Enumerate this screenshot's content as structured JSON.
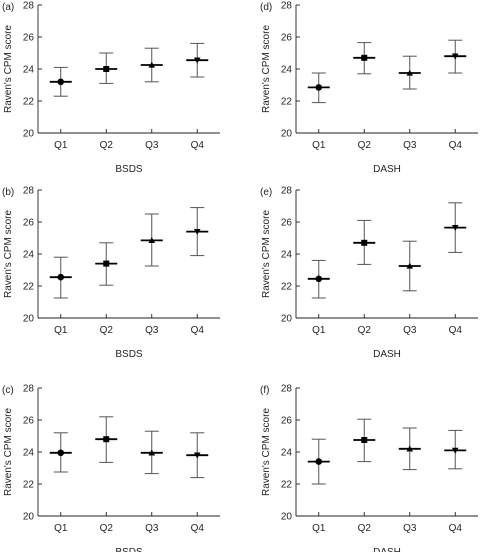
{
  "chart_data": [
    {
      "type": "errorbar",
      "panel_label": "(a)",
      "xlabel": "BSDS",
      "ylabel": "Raven's CPM score",
      "ylim": [
        20,
        28
      ],
      "yticks": [
        "20",
        "22",
        "24",
        "26",
        "28"
      ],
      "categories": [
        "Q1",
        "Q2",
        "Q3",
        "Q4"
      ],
      "values": [
        23.2,
        24.0,
        24.25,
        24.55
      ],
      "lower": [
        22.3,
        23.1,
        23.2,
        23.5
      ],
      "upper": [
        24.1,
        25.0,
        25.3,
        25.6
      ],
      "markers": [
        "circle",
        "square",
        "triangle-up",
        "triangle-down"
      ]
    },
    {
      "type": "errorbar",
      "panel_label": "(d)",
      "xlabel": "DASH",
      "ylabel": "Raven's CPM score",
      "ylim": [
        20,
        28
      ],
      "yticks": [
        "20",
        "22",
        "24",
        "26",
        "28"
      ],
      "categories": [
        "Q1",
        "Q2",
        "Q3",
        "Q4"
      ],
      "values": [
        22.85,
        24.7,
        23.75,
        24.8
      ],
      "lower": [
        21.9,
        23.7,
        22.75,
        23.75
      ],
      "upper": [
        23.75,
        25.65,
        24.8,
        25.8
      ],
      "markers": [
        "circle",
        "square",
        "triangle-up",
        "triangle-down"
      ]
    },
    {
      "type": "errorbar",
      "panel_label": "(b)",
      "xlabel": "BSDS",
      "ylabel": "Raven's CPM score",
      "ylim": [
        20,
        28
      ],
      "yticks": [
        "20",
        "22",
        "24",
        "26",
        "28"
      ],
      "categories": [
        "Q1",
        "Q2",
        "Q3",
        "Q4"
      ],
      "values": [
        22.55,
        23.4,
        24.85,
        25.4
      ],
      "lower": [
        21.25,
        22.05,
        23.25,
        23.9
      ],
      "upper": [
        23.8,
        24.7,
        26.5,
        26.9
      ],
      "markers": [
        "circle",
        "square",
        "triangle-up",
        "triangle-down"
      ]
    },
    {
      "type": "errorbar",
      "panel_label": "(e)",
      "xlabel": "DASH",
      "ylabel": "Raven's CPM score",
      "ylim": [
        20,
        28
      ],
      "yticks": [
        "20",
        "22",
        "24",
        "26",
        "28"
      ],
      "categories": [
        "Q1",
        "Q2",
        "Q3",
        "Q4"
      ],
      "values": [
        22.45,
        24.7,
        23.25,
        25.65
      ],
      "lower": [
        21.25,
        23.35,
        21.7,
        24.1
      ],
      "upper": [
        23.6,
        26.1,
        24.8,
        27.2
      ],
      "markers": [
        "circle",
        "square",
        "triangle-up",
        "triangle-down"
      ]
    },
    {
      "type": "errorbar",
      "panel_label": "(c)",
      "xlabel": "BSDS",
      "ylabel": "Raven's CPM score",
      "ylim": [
        20,
        28
      ],
      "yticks": [
        "20",
        "22",
        "24",
        "26",
        "28"
      ],
      "categories": [
        "Q1",
        "Q2",
        "Q3",
        "Q4"
      ],
      "values": [
        23.95,
        24.8,
        23.95,
        23.8
      ],
      "lower": [
        22.75,
        23.35,
        22.65,
        22.4
      ],
      "upper": [
        25.2,
        26.2,
        25.3,
        25.2
      ],
      "markers": [
        "circle",
        "square",
        "triangle-up",
        "triangle-down"
      ]
    },
    {
      "type": "errorbar",
      "panel_label": "(f)",
      "xlabel": "DASH",
      "ylabel": "Raven's CPM score",
      "ylim": [
        20,
        28
      ],
      "yticks": [
        "20",
        "22",
        "24",
        "26",
        "28"
      ],
      "categories": [
        "Q1",
        "Q2",
        "Q3",
        "Q4"
      ],
      "values": [
        23.4,
        24.75,
        24.2,
        24.1
      ],
      "lower": [
        22.0,
        23.4,
        22.9,
        22.95
      ],
      "upper": [
        24.8,
        26.05,
        25.5,
        25.35
      ],
      "markers": [
        "circle",
        "square",
        "triangle-up",
        "triangle-down"
      ]
    }
  ]
}
